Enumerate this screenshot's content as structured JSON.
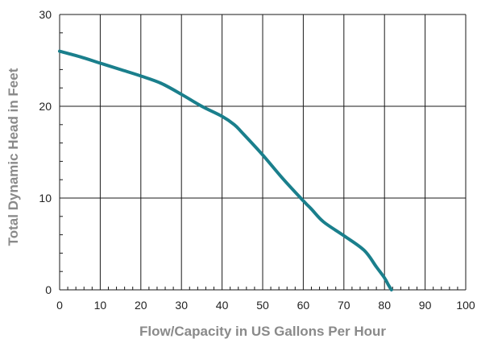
{
  "colors": {
    "curve": "#1a7f8c",
    "grid": "#1a1a1a",
    "axis_title": "#8a8a8a",
    "tick_label": "#222222"
  },
  "chart_data": {
    "type": "line",
    "title": "",
    "xlabel": "Flow/Capacity in US Gallons Per Hour",
    "ylabel": "Total Dynamic Head in Feet",
    "xlim": [
      0,
      100
    ],
    "ylim": [
      0,
      30
    ],
    "x_ticks": [
      0,
      10,
      20,
      30,
      40,
      50,
      60,
      70,
      80,
      90,
      100
    ],
    "y_ticks": [
      0,
      10,
      20,
      30
    ],
    "grid": true,
    "series": [
      {
        "x": [
          0,
          5,
          10,
          15,
          20,
          25,
          30,
          35,
          40,
          43,
          45,
          50,
          55,
          60,
          62,
          65,
          70,
          75,
          78,
          80,
          81,
          81.7
        ],
        "y": [
          26,
          25.4,
          24.7,
          24.0,
          23.3,
          22.5,
          21.3,
          20.0,
          18.9,
          18.0,
          17.1,
          14.7,
          12.1,
          9.7,
          8.8,
          7.4,
          5.9,
          4.3,
          2.5,
          1.3,
          0.5,
          0
        ]
      }
    ]
  }
}
